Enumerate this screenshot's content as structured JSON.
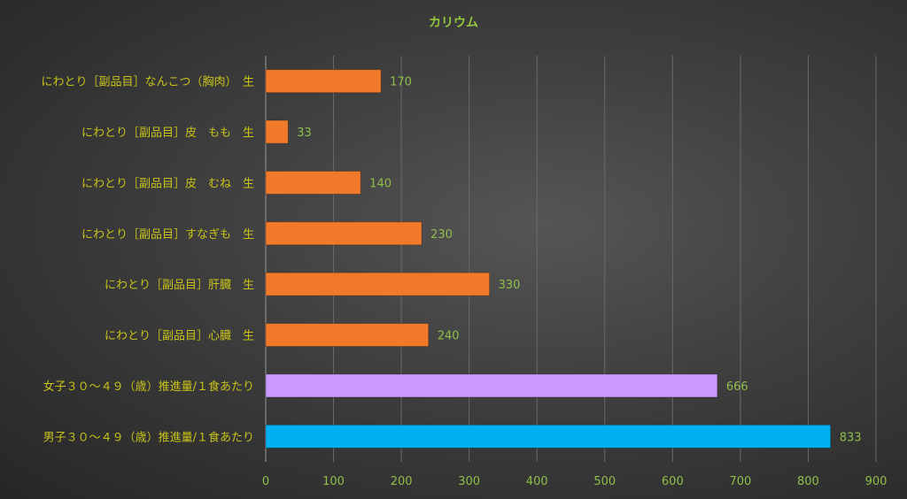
{
  "chart_data": {
    "type": "bar",
    "orientation": "horizontal",
    "title": "カリウム",
    "categories": [
      "にわとり［副品目］なんこつ（胸肉）　生",
      "にわとり［副品目］皮　もも　生",
      "にわとり［副品目］皮　むね　生",
      "にわとり［副品目］すなぎも　生",
      "にわとり［副品目］肝臓　生",
      "にわとり［副品目］心臓　生",
      "女子３０～４９（歳）推進量/１食あたり",
      "男子３０～４９（歳）推進量/１食あたり"
    ],
    "values": [
      170,
      33,
      140,
      230,
      330,
      240,
      666,
      833
    ],
    "bar_colors": [
      "#f07a2a",
      "#f07a2a",
      "#f07a2a",
      "#f07a2a",
      "#f07a2a",
      "#f07a2a",
      "#cc99ff",
      "#00b0f0"
    ],
    "xlim": [
      0,
      900
    ],
    "xticks": [
      0,
      100,
      200,
      300,
      400,
      500,
      600,
      700,
      800,
      900
    ],
    "grid": true,
    "xlabel": "",
    "ylabel": ""
  }
}
